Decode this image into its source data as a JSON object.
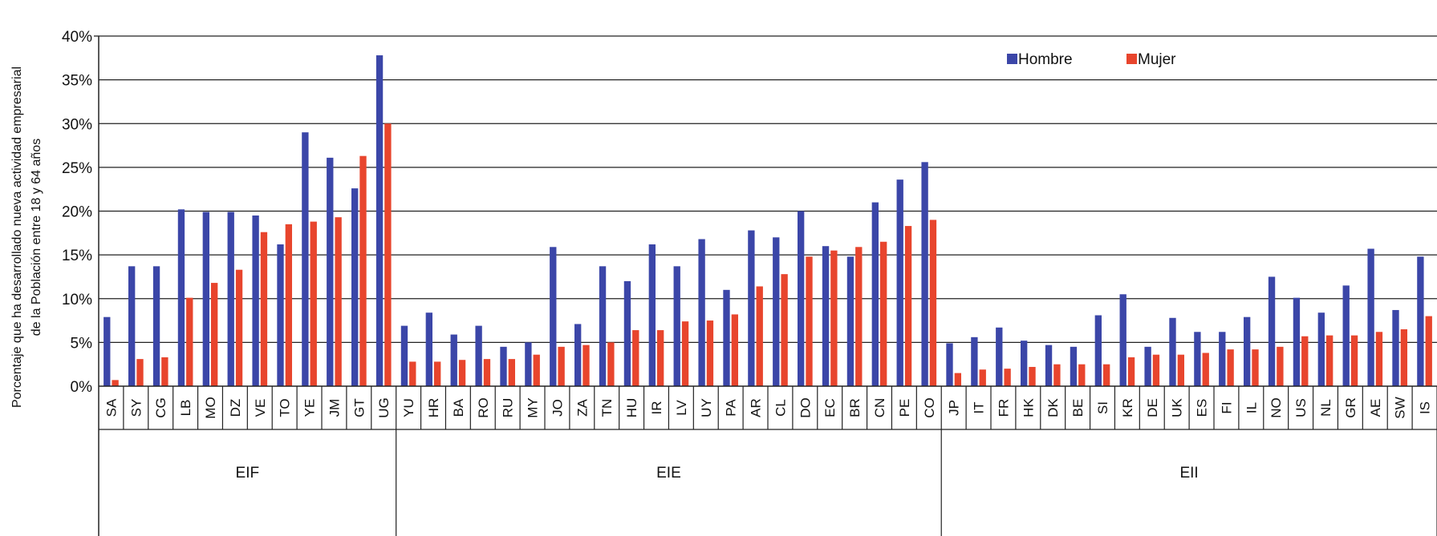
{
  "chart_data": {
    "type": "bar",
    "ylabel": [
      "Porcentaje que ha desarrollado nueva actividad empresarial",
      "de la Población entre 18 y 64 años"
    ],
    "ylim": [
      0,
      40
    ],
    "yticks": [
      "0%",
      "5%",
      "10%",
      "15%",
      "20%",
      "25%",
      "30%",
      "35%",
      "40%"
    ],
    "grid": true,
    "legend_position": "top-right",
    "categories": [
      "SA",
      "SY",
      "CG",
      "LB",
      "MO",
      "DZ",
      "VE",
      "TO",
      "YE",
      "JM",
      "GT",
      "UG",
      "YU",
      "HR",
      "BA",
      "RO",
      "RU",
      "MY",
      "JO",
      "ZA",
      "TN",
      "HU",
      "IR",
      "LV",
      "UY",
      "PA",
      "AR",
      "CL",
      "DO",
      "EC",
      "BR",
      "CN",
      "PE",
      "CO",
      "JP",
      "IT",
      "FR",
      "HK",
      "DK",
      "BE",
      "SI",
      "KR",
      "DE",
      "UK",
      "ES",
      "FI",
      "IL",
      "NO",
      "US",
      "NL",
      "GR",
      "AE",
      "SW",
      "IS"
    ],
    "groups": [
      {
        "label": "EIF",
        "start": 0,
        "end": 11
      },
      {
        "label": "EIE",
        "start": 12,
        "end": 33
      },
      {
        "label": "EII",
        "start": 34,
        "end": 53
      }
    ],
    "series": [
      {
        "name": "Hombre",
        "color": "#3b46a8",
        "values": [
          7.9,
          13.7,
          13.7,
          20.2,
          19.9,
          19.9,
          19.5,
          16.2,
          29.0,
          26.1,
          22.6,
          37.8,
          6.9,
          8.4,
          5.9,
          6.9,
          4.5,
          5.0,
          15.9,
          7.1,
          13.7,
          12.0,
          16.2,
          13.7,
          16.8,
          11.0,
          17.8,
          17.0,
          20.0,
          16.0,
          14.8,
          21.0,
          23.6,
          25.6,
          4.9,
          5.6,
          6.7,
          5.2,
          4.7,
          4.5,
          8.1,
          10.5,
          4.5,
          7.8,
          6.2,
          6.2,
          7.9,
          12.5,
          10.1,
          8.4,
          11.5,
          15.7,
          8.7,
          14.8
        ]
      },
      {
        "name": "Mujer",
        "color": "#e8452d",
        "values": [
          0.7,
          3.1,
          3.3,
          10.1,
          11.8,
          13.3,
          17.6,
          18.5,
          18.8,
          19.3,
          26.3,
          30.0,
          2.8,
          2.8,
          3.0,
          3.1,
          3.1,
          3.6,
          4.5,
          4.7,
          5.0,
          6.4,
          6.4,
          7.4,
          7.5,
          8.2,
          11.4,
          12.8,
          14.8,
          15.5,
          15.9,
          16.5,
          18.3,
          19.0,
          1.5,
          1.9,
          2.0,
          2.2,
          2.5,
          2.5,
          2.5,
          3.3,
          3.6,
          3.6,
          3.8,
          4.2,
          4.2,
          4.5,
          5.7,
          5.8,
          5.8,
          6.2,
          6.5,
          8.0
        ]
      }
    ]
  }
}
